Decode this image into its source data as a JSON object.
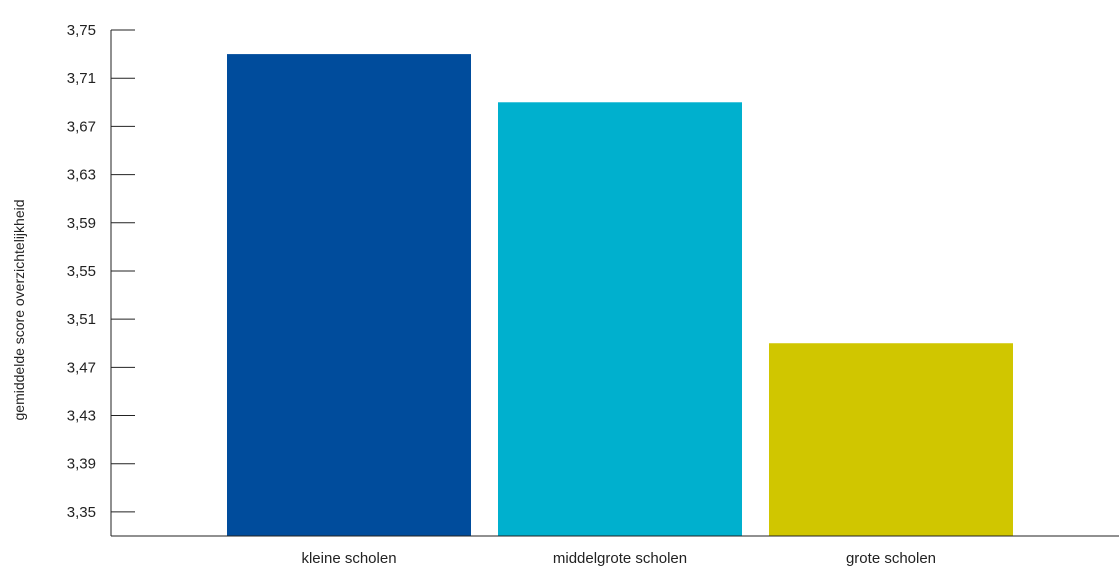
{
  "chart_data": {
    "type": "bar",
    "categories": [
      "kleine scholen",
      "middelgrote scholen",
      "grote scholen"
    ],
    "values": [
      3.73,
      3.69,
      3.49
    ],
    "colors": [
      "#004C9C",
      "#00B0CE",
      "#D0C600"
    ],
    "ylabel": "gemiddelde score overzichtelijkheid",
    "xlabel": "",
    "ylim": [
      3.33,
      3.75
    ],
    "yticks": [
      3.35,
      3.39,
      3.43,
      3.47,
      3.51,
      3.55,
      3.59,
      3.63,
      3.67,
      3.71,
      3.75
    ],
    "ytick_labels": [
      "3,35",
      "3,39",
      "3,43",
      "3,47",
      "3,51",
      "3,55",
      "3,59",
      "3,63",
      "3,67",
      "3,71",
      "3,75"
    ],
    "grid": false
  }
}
